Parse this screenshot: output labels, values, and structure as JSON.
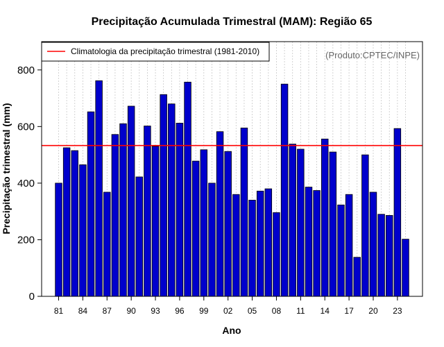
{
  "chart_data": {
    "type": "bar",
    "title": "Precipitação Acumulada Trimestral (MAM): Região 65",
    "xlabel": "Ano",
    "ylabel": "Precipitação trimestral (mm)",
    "ylim": [
      0,
      900
    ],
    "yticks": [
      0,
      200,
      400,
      600,
      800
    ],
    "categories": [
      "1981",
      "1982",
      "1983",
      "1984",
      "1985",
      "1986",
      "1987",
      "1988",
      "1989",
      "1990",
      "1991",
      "1992",
      "1993",
      "1994",
      "1995",
      "1996",
      "1997",
      "1998",
      "1999",
      "2000",
      "2001",
      "2002",
      "2003",
      "2004",
      "2005",
      "2006",
      "2007",
      "2008",
      "2009",
      "2010",
      "2011",
      "2012",
      "2013",
      "2014",
      "2015",
      "2016",
      "2017",
      "2018",
      "2019",
      "2020",
      "2021",
      "2022",
      "2023",
      "2024"
    ],
    "xtick_labels": [
      "81",
      "84",
      "87",
      "90",
      "93",
      "96",
      "99",
      "02",
      "05",
      "08",
      "11",
      "14",
      "17",
      "20",
      "23"
    ],
    "xtick_years": [
      1981,
      1984,
      1987,
      1990,
      1993,
      1996,
      1999,
      2002,
      2005,
      2008,
      2011,
      2014,
      2017,
      2020,
      2023
    ],
    "values": [
      400,
      525,
      515,
      465,
      652,
      762,
      368,
      572,
      610,
      672,
      422,
      602,
      530,
      713,
      680,
      612,
      757,
      478,
      518,
      400,
      582,
      512,
      360,
      595,
      340,
      372,
      380,
      296,
      750,
      538,
      520,
      386,
      374,
      556,
      510,
      323,
      360,
      138,
      500,
      368,
      290,
      286,
      593,
      202
    ],
    "bar_color": "#0000cc",
    "climatology": {
      "label": "Climatologia da precipitação trimestral (1981-2010)",
      "value": 533,
      "color": "#ff0000"
    },
    "grid": true,
    "legend_position": "top-left",
    "credit": "(Produto:CPTEC/INPE)"
  }
}
